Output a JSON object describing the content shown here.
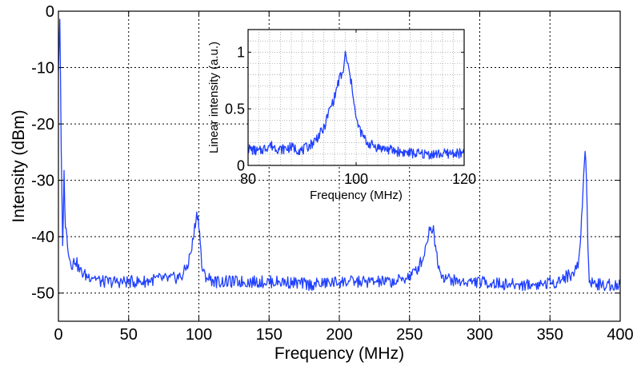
{
  "chart_data": [
    {
      "type": "line",
      "xlabel": "Frequency (MHz)",
      "ylabel": "Intensity (dBm)",
      "xlim": [
        0,
        400
      ],
      "ylim": [
        -55,
        0
      ],
      "xticks": [
        0,
        50,
        100,
        150,
        200,
        250,
        300,
        350,
        400
      ],
      "yticks": [
        0,
        -10,
        -20,
        -30,
        -40,
        -50
      ],
      "grid": true,
      "color": "#1f3fff",
      "series": [
        {
          "x": [
            0,
            1,
            2,
            3,
            4,
            5,
            6,
            7,
            8,
            10,
            12,
            15,
            20,
            25,
            30,
            40,
            50,
            60,
            70,
            80,
            88,
            92,
            95,
            97,
            98,
            99,
            100,
            101,
            102,
            103,
            105,
            108,
            112,
            120,
            140,
            160,
            180,
            200,
            220,
            240,
            250,
            255,
            260,
            263,
            265,
            267,
            269,
            271,
            274,
            278,
            285,
            300,
            320,
            340,
            355,
            362,
            367,
            370,
            372,
            374,
            375,
            376,
            377,
            378,
            380,
            385,
            390,
            395,
            400
          ],
          "y": [
            -10,
            -1,
            -25,
            -42,
            -29,
            -38,
            -40,
            -42,
            -44,
            -45,
            -44,
            -46,
            -47,
            -47,
            -48,
            -48,
            -48,
            -48,
            -47.5,
            -47.5,
            -47,
            -45,
            -42,
            -38.5,
            -36.5,
            -36,
            -37.5,
            -41,
            -45,
            -46.5,
            -47,
            -47.5,
            -48,
            -48,
            -48,
            -48,
            -48.5,
            -48,
            -48,
            -48,
            -47,
            -46,
            -43.5,
            -40,
            -38,
            -39,
            -42.5,
            -45.5,
            -47,
            -47.5,
            -48,
            -48,
            -48.5,
            -48.5,
            -48,
            -47,
            -46.5,
            -45,
            -40,
            -28,
            -24,
            -30,
            -42,
            -47.5,
            -48,
            -48.5,
            -48.5,
            -48.5,
            -48.5
          ]
        }
      ]
    },
    {
      "type": "line",
      "xlabel": "Frequency (MHz)",
      "ylabel": "Linear intensity (a.u.)",
      "xlim": [
        80,
        120
      ],
      "ylim": [
        0,
        1.2
      ],
      "xticks": [
        80,
        100,
        120
      ],
      "yticks": [
        0,
        0.5,
        1
      ],
      "grid": true,
      "color": "#1f3fff",
      "series": [
        {
          "x": [
            80,
            82,
            84,
            86,
            88,
            90,
            92,
            94,
            95,
            96,
            96.5,
            97,
            97.5,
            98,
            98.5,
            99,
            99.5,
            100,
            101,
            102,
            104,
            106,
            108,
            110,
            112,
            114,
            116,
            118,
            120
          ],
          "y": [
            0.15,
            0.12,
            0.18,
            0.14,
            0.16,
            0.13,
            0.2,
            0.32,
            0.48,
            0.6,
            0.7,
            0.78,
            0.8,
            0.98,
            0.88,
            0.75,
            0.62,
            0.4,
            0.28,
            0.2,
            0.16,
            0.14,
            0.12,
            0.11,
            0.1,
            0.1,
            0.1,
            0.11,
            0.1
          ]
        }
      ]
    }
  ]
}
